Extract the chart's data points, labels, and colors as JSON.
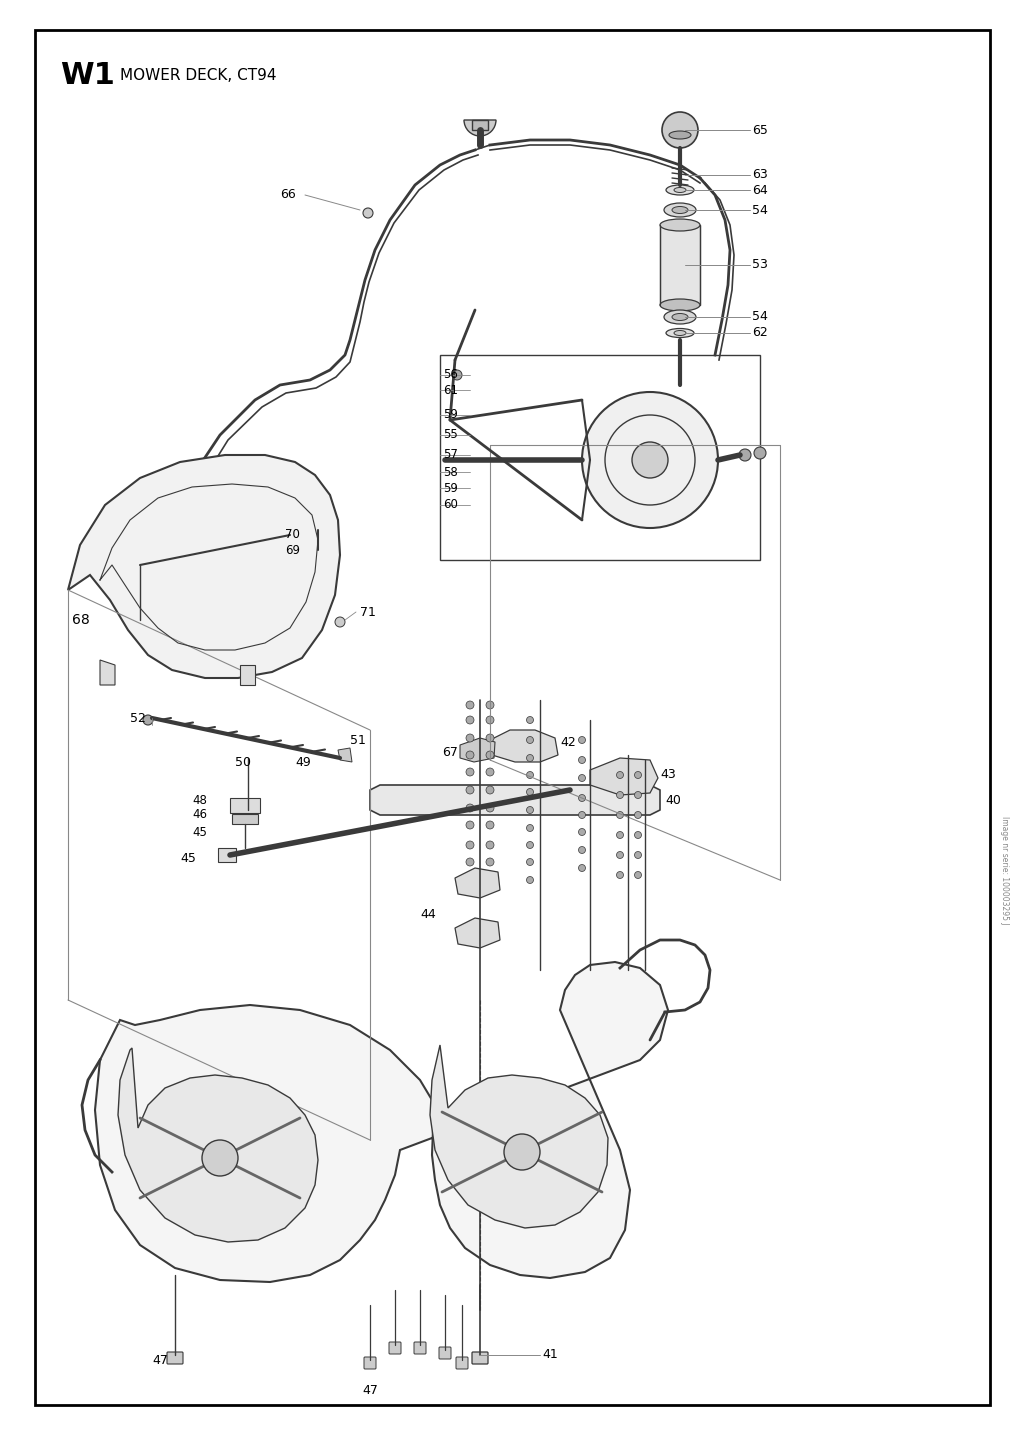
{
  "title": "W1",
  "subtitle": "MOWER DECK, CT94",
  "bg": "#ffffff",
  "lc": "#3a3a3a",
  "tc": "#000000",
  "glc": "#888888",
  "fig_w": 10.24,
  "fig_h": 14.35,
  "dpi": 100
}
